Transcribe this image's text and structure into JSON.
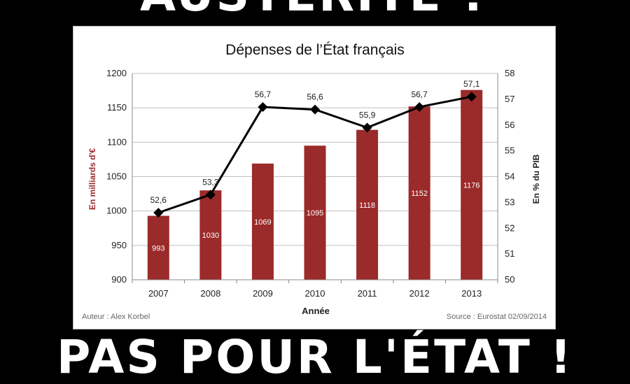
{
  "captions": {
    "top": "AUSTÉRITÉ ?",
    "bottom": "PAS POUR L'ÉTAT !"
  },
  "colors": {
    "bar": "#9b2a2a",
    "line": "#000000",
    "grid": "#bfbfbf",
    "left_axis_label": "#9b2a2a"
  },
  "chart_data": {
    "type": "bar",
    "title": "Dépenses de l’État français",
    "categories": [
      "2007",
      "2008",
      "2009",
      "2010",
      "2011",
      "2012",
      "2013"
    ],
    "xlabel": "Année",
    "ylabel": "En milliards d'€",
    "y2label": "En % du PIB",
    "ylim": [
      900,
      1200
    ],
    "y2lim": [
      50,
      58
    ],
    "yticks": [
      900,
      950,
      1000,
      1050,
      1100,
      1150,
      1200
    ],
    "y2ticks": [
      50,
      51,
      52,
      53,
      54,
      55,
      56,
      57,
      58
    ],
    "grid": true,
    "series": [
      {
        "type": "bar",
        "axis": "left",
        "values": [
          993,
          1030,
          1069,
          1095,
          1118,
          1152,
          1176
        ],
        "labels": [
          "993",
          "1030",
          "1069",
          "1095",
          "1118",
          "1152",
          "1176"
        ]
      },
      {
        "type": "line",
        "axis": "right",
        "marker": "diamond",
        "values": [
          52.6,
          53.3,
          56.7,
          56.6,
          55.9,
          56.7,
          57.1
        ],
        "labels": [
          "52,6",
          "53,3",
          "56,7",
          "56,6",
          "55,9",
          "56,7",
          "57,1"
        ]
      }
    ],
    "footer": {
      "author": "Auteur  : Alex Korbel",
      "source": "Source  : Eurostat  02/09/2014"
    }
  }
}
